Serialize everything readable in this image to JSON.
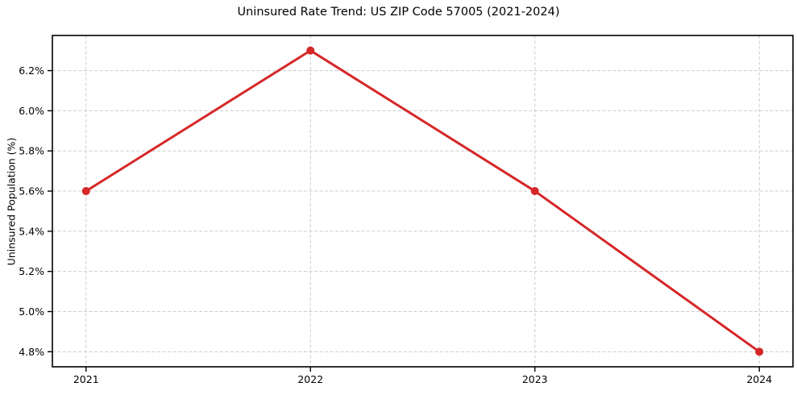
{
  "chart_data": {
    "type": "line",
    "title": "Uninsured Rate Trend: US ZIP Code 57005 (2021-2024)",
    "xlabel": "",
    "ylabel": "Uninsured Population (%)",
    "categories": [
      2021,
      2022,
      2023,
      2024
    ],
    "x_tick_labels": [
      "2021",
      "2022",
      "2023",
      "2024"
    ],
    "values": [
      5.6,
      6.3,
      5.6,
      4.8
    ],
    "series": [
      {
        "name": "Uninsured Population (%)",
        "values": [
          5.6,
          6.3,
          5.6,
          4.8
        ]
      }
    ],
    "y_ticks": [
      {
        "value": 4.8,
        "label": "4.8%"
      },
      {
        "value": 5.0,
        "label": "5.0%"
      },
      {
        "value": 5.2,
        "label": "5.2%"
      },
      {
        "value": 5.4,
        "label": "5.4%"
      },
      {
        "value": 5.6,
        "label": "5.6%"
      },
      {
        "value": 5.8,
        "label": "5.8%"
      },
      {
        "value": 6.0,
        "label": "6.0%"
      },
      {
        "value": 6.2,
        "label": "6.2%"
      }
    ],
    "xlim": [
      2020.85,
      2024.15
    ],
    "ylim": [
      4.725,
      6.375
    ],
    "grid": true,
    "grid_style": "dashed",
    "legend_position": "none",
    "colors": {
      "line": "#d62728",
      "marker": "#d62728",
      "grid": "#cccccc",
      "spine": "#000000",
      "text": "#000000",
      "background": "#ffffff"
    }
  }
}
